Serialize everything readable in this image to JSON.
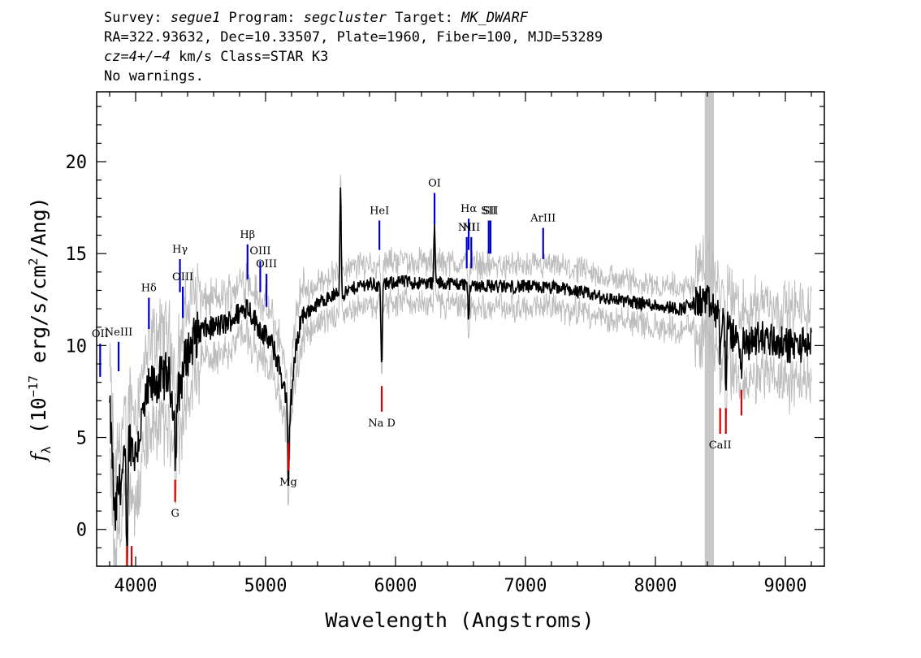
{
  "header": {
    "line1_prefix": "Survey: ",
    "survey": "segue1",
    "line1_program": " Program: ",
    "program": "segcluster",
    "line1_target": " Target: ",
    "target": "MK_DWARF",
    "line2": "RA=322.93632, Dec=10.33507, Plate=1960, Fiber=100, MJD=53289",
    "line3_cz": "cz=4+/−4",
    "line3_rest": " km/s Class=STAR K3",
    "line4": "No warnings."
  },
  "chart_data": {
    "type": "line",
    "xlabel": "Wavelength (Angstroms)",
    "ylabel": "f_λ (10^-17 erg/s/cm^2/Ang)",
    "xlim": [
      3700,
      9300
    ],
    "ylim": [
      -2,
      23.8
    ],
    "xticks": [
      4000,
      5000,
      6000,
      7000,
      8000,
      9000
    ],
    "yticks": [
      0,
      5,
      10,
      15,
      20
    ],
    "grey_band": [
      8380,
      8450
    ],
    "colors": {
      "spectrum": "#000000",
      "error": "#bdbdbd",
      "emission": "#0000cc",
      "absorption": "#dd0000",
      "band": "#c8c8c8"
    },
    "spectrum_anchors": [
      [
        3800,
        6.5
      ],
      [
        3820,
        4
      ],
      [
        3840,
        0
      ],
      [
        3860,
        2
      ],
      [
        3900,
        3
      ],
      [
        3950,
        5
      ],
      [
        4000,
        4
      ],
      [
        4050,
        6
      ],
      [
        4100,
        7.5
      ],
      [
        4150,
        8
      ],
      [
        4200,
        8.2
      ],
      [
        4250,
        8.5
      ],
      [
        4300,
        6.5
      ],
      [
        4320,
        7
      ],
      [
        4380,
        9.2
      ],
      [
        4450,
        10.4
      ],
      [
        4500,
        10.8
      ],
      [
        4600,
        11
      ],
      [
        4700,
        11.2
      ],
      [
        4800,
        11.8
      ],
      [
        4860,
        12.2
      ],
      [
        4900,
        11.6
      ],
      [
        4950,
        11
      ],
      [
        5000,
        10.5
      ],
      [
        5050,
        10
      ],
      [
        5100,
        9
      ],
      [
        5150,
        7.5
      ],
      [
        5180,
        5.8
      ],
      [
        5220,
        9
      ],
      [
        5270,
        11.5
      ],
      [
        5350,
        12
      ],
      [
        5450,
        12.5
      ],
      [
        5550,
        12.8
      ],
      [
        5600,
        12.8
      ],
      [
        5700,
        13.2
      ],
      [
        5800,
        13.4
      ],
      [
        5880,
        13.2
      ],
      [
        6000,
        13.5
      ],
      [
        6200,
        13.4
      ],
      [
        6400,
        13.4
      ],
      [
        6600,
        13.3
      ],
      [
        6800,
        13.2
      ],
      [
        7000,
        13.2
      ],
      [
        7300,
        13.1
      ],
      [
        7600,
        12.6
      ],
      [
        7900,
        12.3
      ],
      [
        8200,
        12
      ],
      [
        8380,
        12.5
      ],
      [
        8500,
        11.5
      ],
      [
        8600,
        10.5
      ],
      [
        8700,
        10
      ],
      [
        8800,
        10.5
      ],
      [
        8900,
        10.3
      ],
      [
        9000,
        10
      ],
      [
        9100,
        10
      ],
      [
        9200,
        10.2
      ]
    ],
    "spectrum_features": [
      {
        "x": 3933,
        "depth": -6
      },
      {
        "x": 4308,
        "depth": -3
      },
      {
        "x": 5175,
        "depth": -4
      },
      {
        "x": 5577,
        "depth": 6
      },
      {
        "x": 5893,
        "depth": -4.5
      },
      {
        "x": 6300,
        "depth": 3
      },
      {
        "x": 6563,
        "depth": -2
      },
      {
        "x": 8498,
        "depth": -2
      },
      {
        "x": 8542,
        "depth": -3
      },
      {
        "x": 8662,
        "depth": -2
      }
    ],
    "emission_lines": [
      {
        "label": "OII",
        "wave": 3727,
        "y0": 8.3,
        "y1": 10.1
      },
      {
        "label": "NeIII",
        "wave": 3869,
        "y0": 8.6,
        "y1": 10.2
      },
      {
        "label": "Hδ",
        "wave": 4102,
        "y0": 10.9,
        "y1": 12.6
      },
      {
        "label": "Hγ",
        "wave": 4341,
        "y0": 12.9,
        "y1": 14.7
      },
      {
        "label": "OIII",
        "wave": 4363,
        "y0": 11.5,
        "y1": 13.2
      },
      {
        "label": "Hβ",
        "wave": 4861,
        "y0": 13.6,
        "y1": 15.5
      },
      {
        "label": "OIII",
        "wave": 4959,
        "y0": 12.9,
        "y1": 14.6
      },
      {
        "label": "OIII",
        "wave": 5007,
        "y0": 12.1,
        "y1": 13.9
      },
      {
        "label": "HeI",
        "wave": 5876,
        "y0": 15.2,
        "y1": 16.8
      },
      {
        "label": "OI",
        "wave": 6300,
        "y0": 16.6,
        "y1": 18.3
      },
      {
        "label": "NII",
        "wave": 6548,
        "y0": 14.2,
        "y1": 15.9
      },
      {
        "label": "Hα",
        "wave": 6563,
        "y0": 15.2,
        "y1": 16.9
      },
      {
        "label": "NII",
        "wave": 6583,
        "y0": 14.2,
        "y1": 15.9
      },
      {
        "label": "SII",
        "wave": 6717,
        "y0": 15.0,
        "y1": 16.8
      },
      {
        "label": "SII",
        "wave": 6731,
        "y0": 15.0,
        "y1": 16.8
      },
      {
        "label": "ArIII",
        "wave": 7136,
        "y0": 14.7,
        "y1": 16.4
      }
    ],
    "absorption_lines": [
      {
        "label": "",
        "wave": 3934,
        "y0": -2,
        "y1": -0.9
      },
      {
        "label": "",
        "wave": 3969,
        "y0": -2,
        "y1": -0.9
      },
      {
        "label": "G",
        "wave": 4304,
        "y0": 1.5,
        "y1": 2.7
      },
      {
        "label": "Mg",
        "wave": 5175,
        "y0": 3.2,
        "y1": 4.7
      },
      {
        "label": "Na D",
        "wave": 5894,
        "y0": 6.4,
        "y1": 7.8
      },
      {
        "label": "CaII",
        "wave": 8498,
        "y0": 5.2,
        "y1": 6.6
      },
      {
        "label": "",
        "wave": 8542,
        "y0": 5.2,
        "y1": 6.6
      },
      {
        "label": "",
        "wave": 8662,
        "y0": 6.2,
        "y1": 7.6
      }
    ]
  }
}
